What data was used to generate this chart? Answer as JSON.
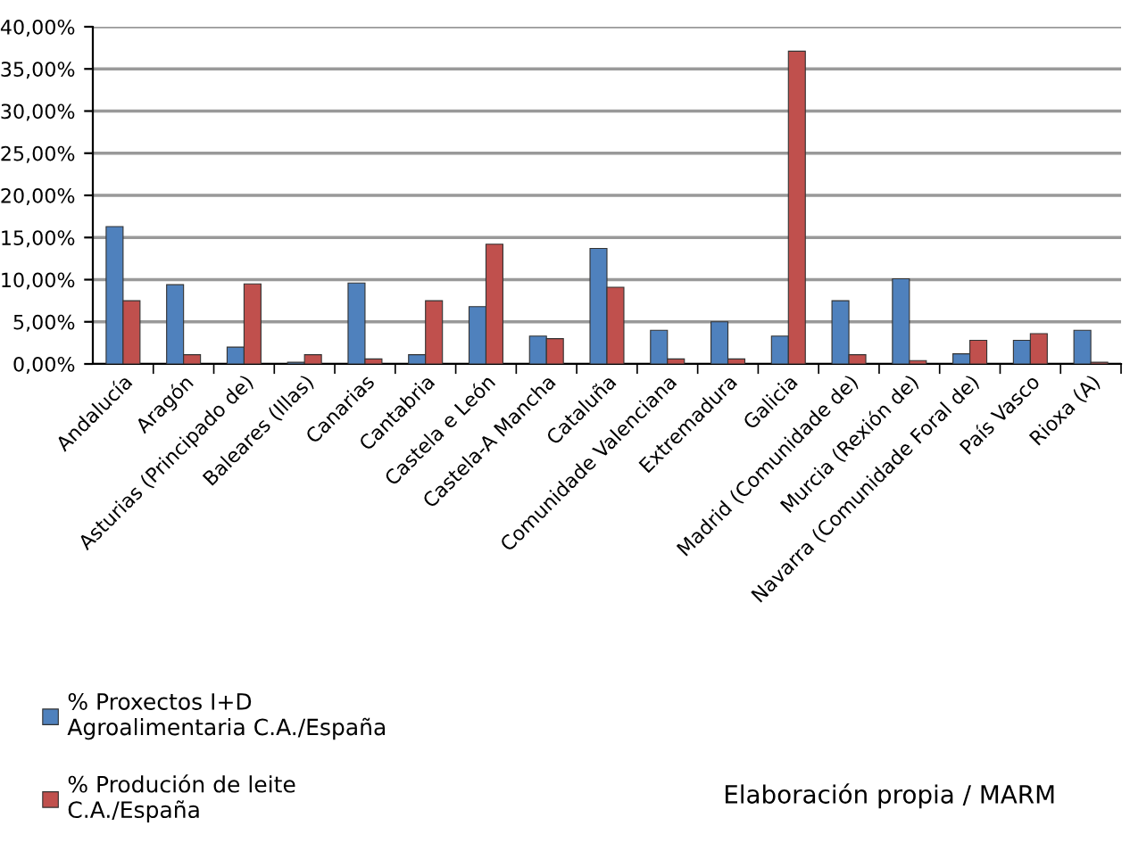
{
  "chart_data": {
    "type": "bar",
    "categories": [
      "Andalucía",
      "Aragón",
      "Asturias (Principado de)",
      "Baleares (Illas)",
      "Canarias",
      "Cantabria",
      "Castela e León",
      "Castela-A Mancha",
      "Cataluña",
      "Comunidade Valenciana",
      "Extremadura",
      "Galicia",
      "Madrid (Comunidade de)",
      "Murcia (Rexión de)",
      "Navarra (Comunidade Foral de)",
      "País Vasco",
      "Rioxa (A)"
    ],
    "series": [
      {
        "name": "% Proxectos I+D\nAgroalimentaria C.A./España",
        "color": "#4f81bd",
        "values": [
          16.3,
          9.4,
          2.0,
          0.2,
          9.6,
          1.1,
          6.8,
          3.3,
          13.7,
          4.0,
          5.0,
          3.3,
          7.5,
          10.1,
          1.2,
          2.8,
          4.0
        ]
      },
      {
        "name": "% Produción de leite\nC.A./España",
        "color": "#c0504d",
        "values": [
          7.5,
          1.1,
          9.5,
          1.1,
          0.6,
          7.5,
          14.2,
          3.0,
          9.1,
          0.6,
          0.6,
          37.1,
          1.1,
          0.4,
          2.8,
          3.6,
          0.2
        ]
      }
    ],
    "ylim": [
      0,
      40
    ],
    "yticks": [
      {
        "value": 0,
        "label": "0,00%"
      },
      {
        "value": 5,
        "label": "5,00%"
      },
      {
        "value": 10,
        "label": "10,00%"
      },
      {
        "value": 15,
        "label": "15,00%"
      },
      {
        "value": 20,
        "label": "20,00%"
      },
      {
        "value": 25,
        "label": "25,00%"
      },
      {
        "value": 30,
        "label": "30,00%"
      },
      {
        "value": 35,
        "label": "35,00%"
      },
      {
        "value": 40,
        "label": "40,00%"
      }
    ],
    "grid": "y",
    "legend": "bottom left",
    "annotations": [
      "Elaboración propia / MARM"
    ]
  }
}
